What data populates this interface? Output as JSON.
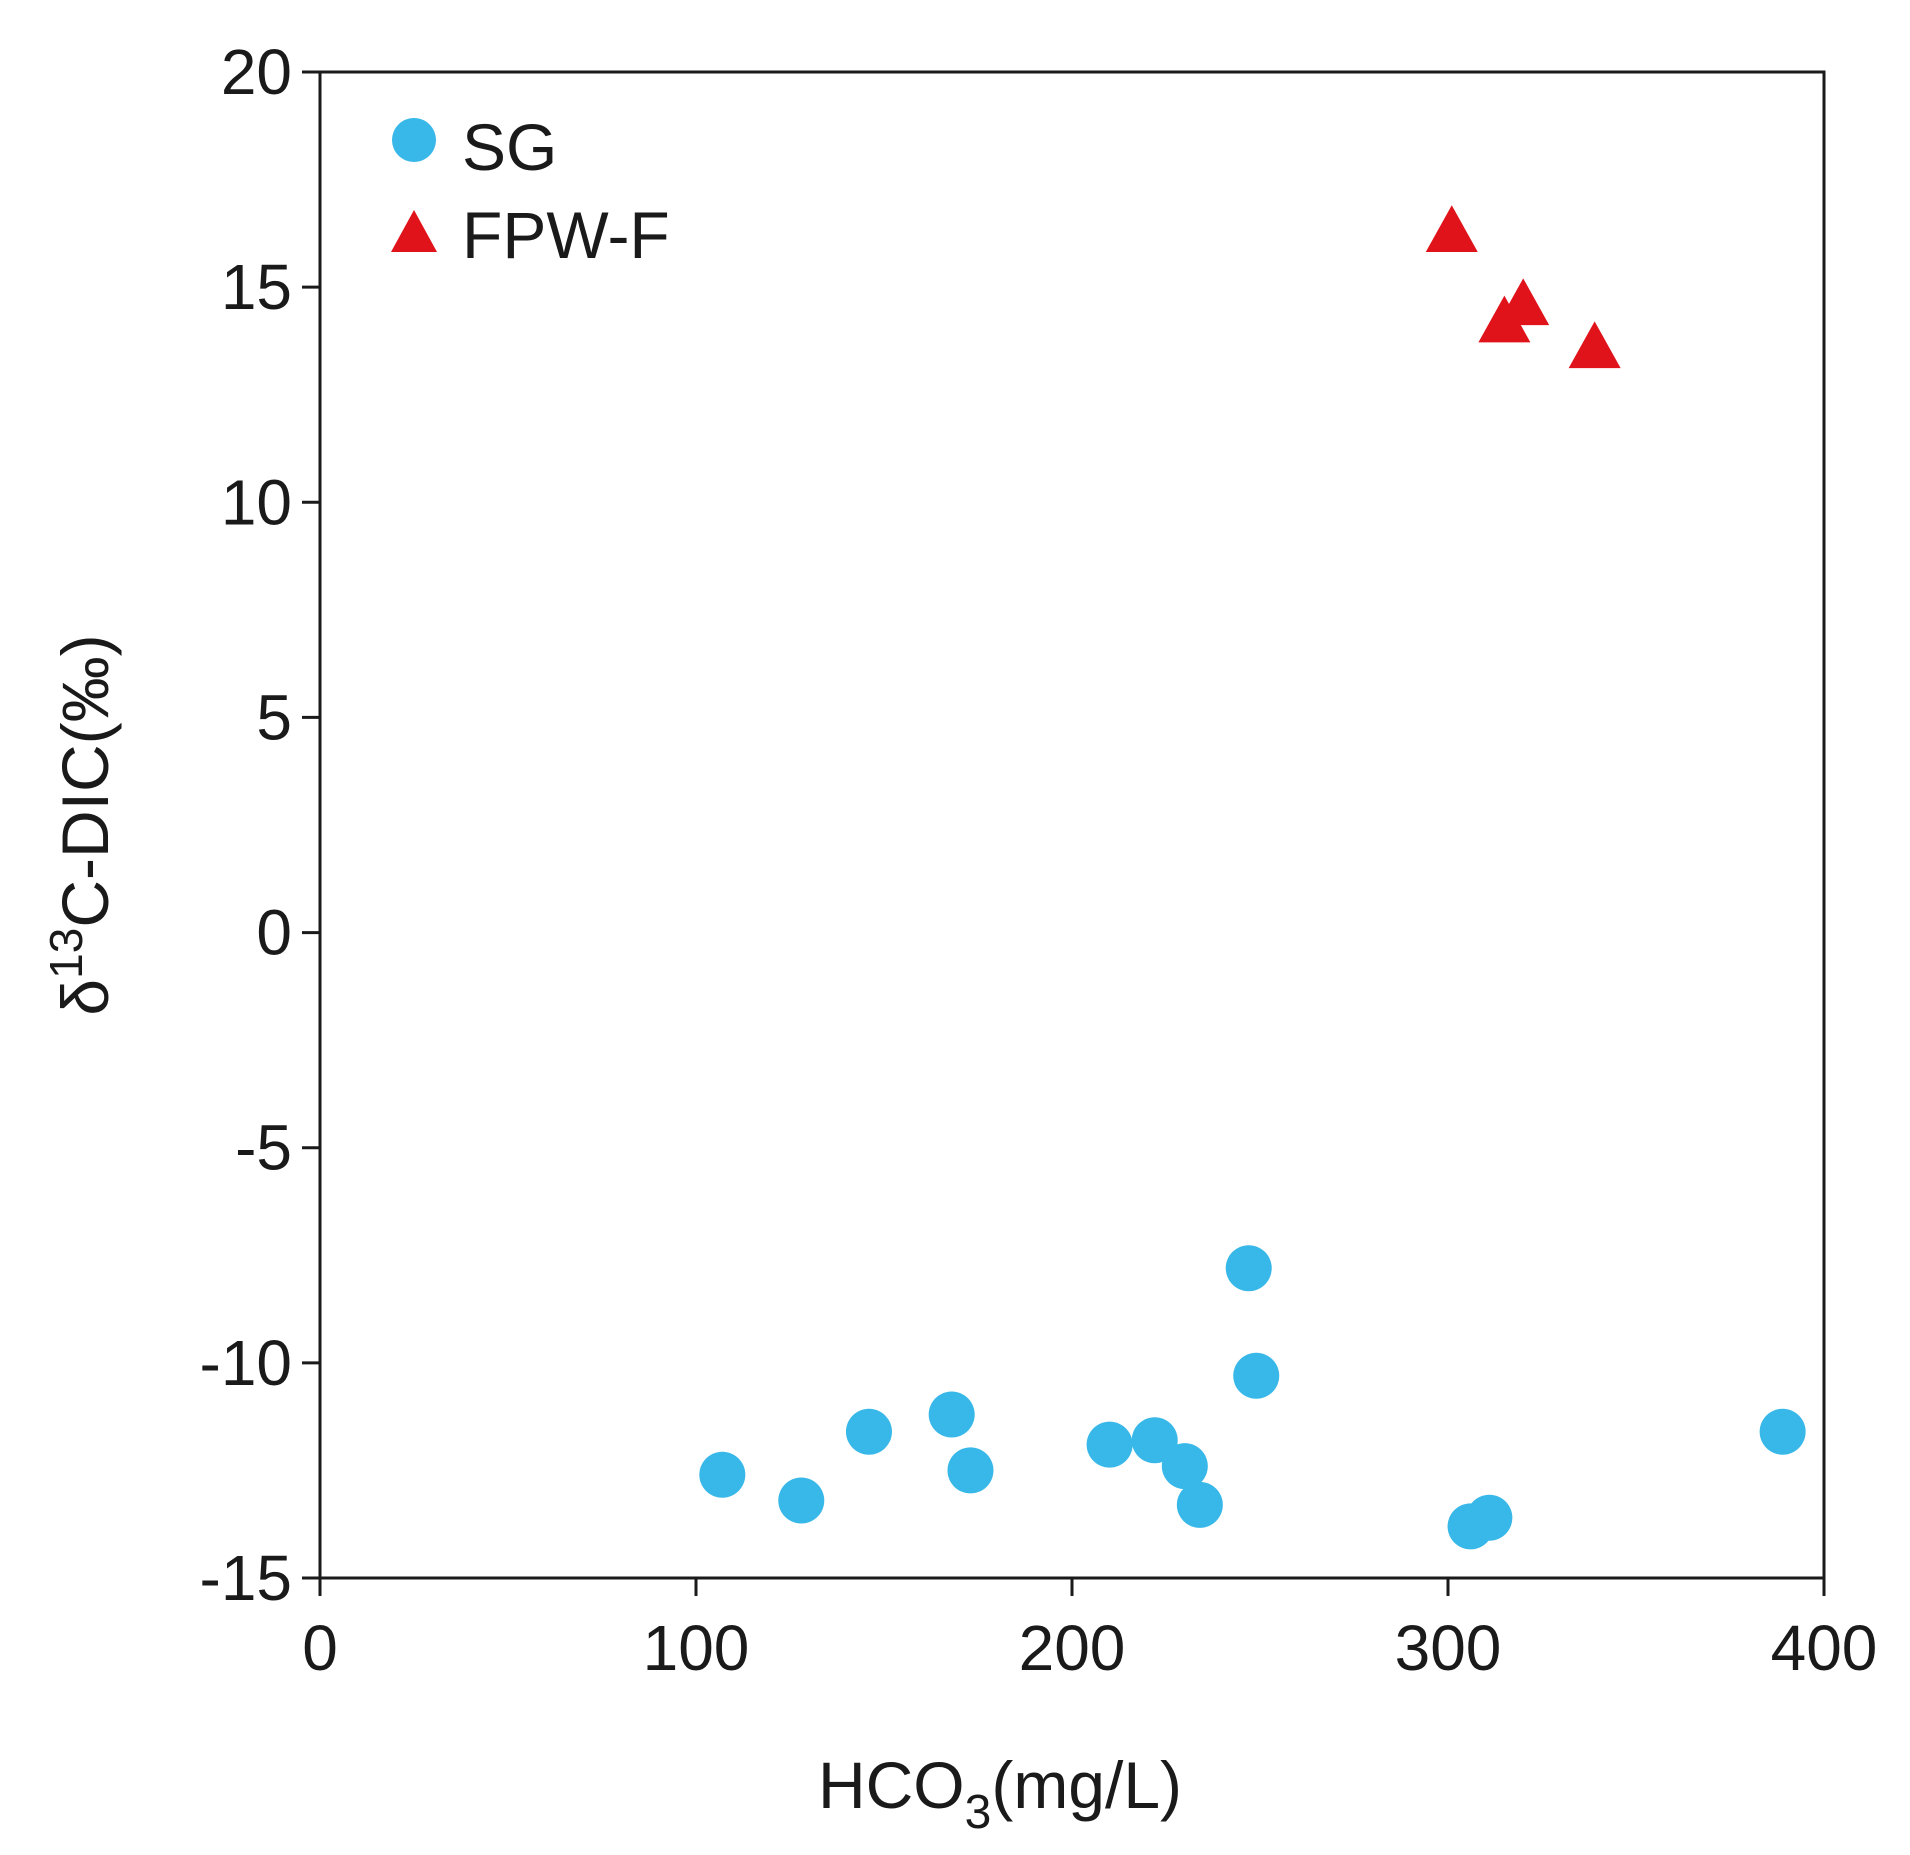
{
  "chart_data": {
    "type": "scatter",
    "title": "",
    "xlabel": {
      "main": "HCO",
      "sub": "3",
      "tail": "(mg/L)"
    },
    "ylabel": {
      "prefix": "δ",
      "sup": "13",
      "tail": "C-DIC(‰)"
    },
    "xlim": [
      0,
      400
    ],
    "ylim": [
      -15,
      20
    ],
    "xticks": [
      0,
      100,
      200,
      300,
      400
    ],
    "yticks": [
      -15,
      -10,
      -5,
      0,
      5,
      10,
      15,
      20
    ],
    "grid": false,
    "legend_position": "top-left",
    "series": [
      {
        "name": "SG",
        "marker": "circle",
        "color": "#38b8e8",
        "points": [
          [
            107,
            -12.6
          ],
          [
            128,
            -13.2
          ],
          [
            146,
            -11.6
          ],
          [
            168,
            -11.2
          ],
          [
            173,
            -12.5
          ],
          [
            210,
            -11.9
          ],
          [
            222,
            -11.8
          ],
          [
            230,
            -12.4
          ],
          [
            234,
            -13.3
          ],
          [
            247,
            -7.8
          ],
          [
            249,
            -10.3
          ],
          [
            306,
            -13.8
          ],
          [
            311,
            -13.6
          ],
          [
            389,
            -11.6
          ]
        ]
      },
      {
        "name": "FPW-F",
        "marker": "triangle",
        "color": "#e0121a",
        "points": [
          [
            301,
            16.3
          ],
          [
            315,
            14.2
          ],
          [
            320,
            14.6
          ],
          [
            339,
            13.6
          ]
        ]
      }
    ]
  }
}
